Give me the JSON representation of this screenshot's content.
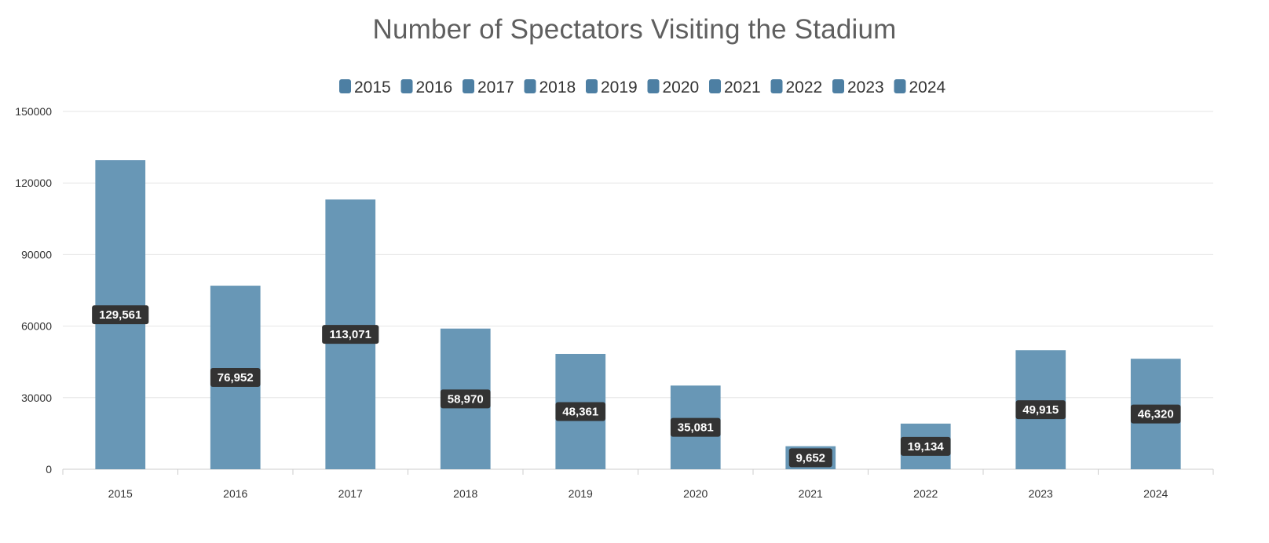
{
  "chart_data": {
    "type": "bar",
    "title": "Number of Spectators Visiting the Stadium",
    "xlabel": "",
    "ylabel": "",
    "categories": [
      "2015",
      "2016",
      "2017",
      "2018",
      "2019",
      "2020",
      "2021",
      "2022",
      "2023",
      "2024"
    ],
    "values": [
      129561,
      76952,
      113071,
      58970,
      48361,
      35081,
      9652,
      19134,
      49915,
      46320
    ],
    "data_labels": [
      "129,561",
      "76,952",
      "113,071",
      "58,970",
      "48,361",
      "35,081",
      "9,652",
      "19,134",
      "49,915",
      "46,320"
    ],
    "legend": [
      "2015",
      "2016",
      "2017",
      "2018",
      "2019",
      "2020",
      "2021",
      "2022",
      "2023",
      "2024"
    ],
    "legend_placement": "top-center",
    "ylim": [
      0,
      150000
    ],
    "yticks": [
      "0",
      "30000",
      "60000",
      "90000",
      "120000",
      "150000"
    ],
    "ytick_values": [
      0,
      30000,
      60000,
      90000,
      120000,
      150000
    ],
    "grid": true,
    "colors": {
      "bar": "#6897b6",
      "legend_swatch": "#4d7fa3",
      "grid": "#e6e6e6",
      "axis": "#cccccc",
      "label_bg": "#333333",
      "label_text": "#ffffff"
    }
  }
}
